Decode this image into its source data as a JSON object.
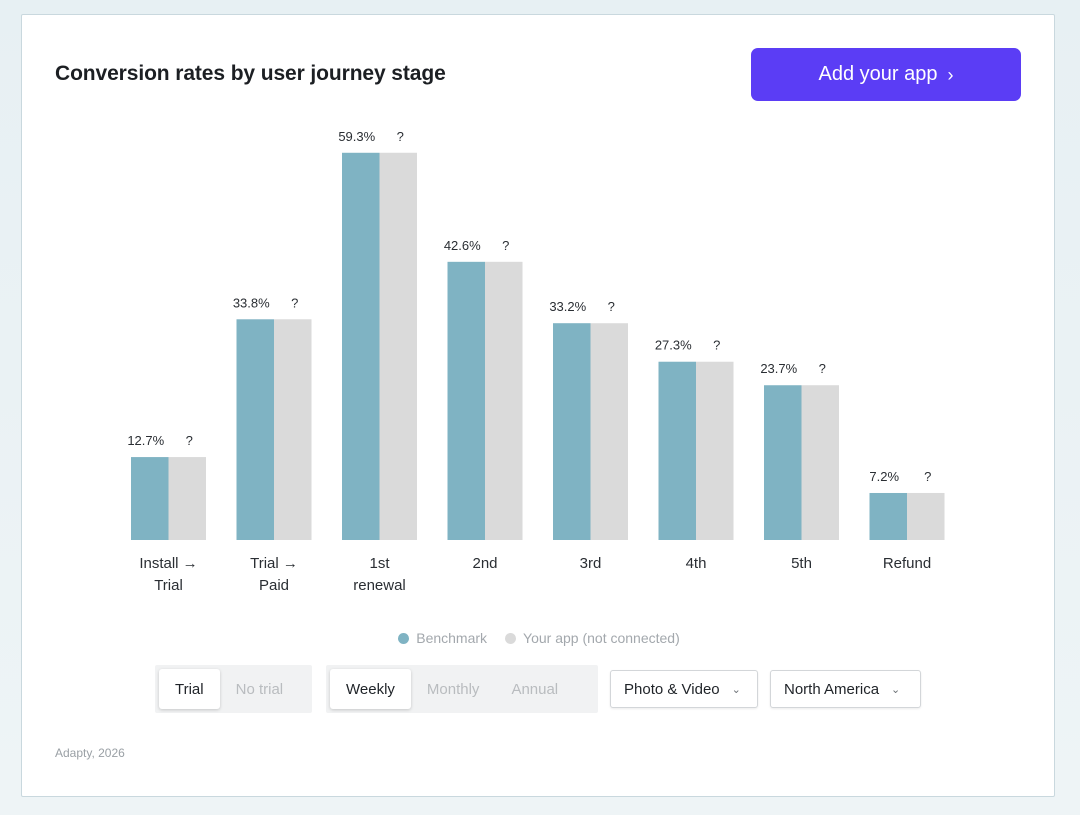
{
  "header": {
    "title": "Conversion rates by user journey stage",
    "cta_label": "Add your app",
    "cta_icon": "chevron-right-icon",
    "cta_color": "#5b3df5"
  },
  "chart_data": {
    "type": "bar",
    "title": "Conversion rates by user journey stage",
    "categories": [
      [
        "Install →",
        "Trial"
      ],
      [
        "Trial →",
        "Paid"
      ],
      [
        "1st",
        "renewal"
      ],
      [
        "2nd"
      ],
      [
        "3rd"
      ],
      [
        "4th"
      ],
      [
        "5th"
      ],
      [
        "Refund"
      ]
    ],
    "series": [
      {
        "name": "Benchmark",
        "color": "#7fb3c3",
        "values": [
          12.7,
          33.8,
          59.3,
          42.6,
          33.2,
          27.3,
          23.7,
          7.2
        ],
        "labels": [
          "12.7%",
          "33.8%",
          "59.3%",
          "42.6%",
          "33.2%",
          "27.3%",
          "23.7%",
          "7.2%"
        ]
      },
      {
        "name": "Your app (not connected)",
        "color": "#dadada",
        "values": [
          12.7,
          33.8,
          59.3,
          42.6,
          33.2,
          27.3,
          23.7,
          7.2
        ],
        "labels": [
          "?",
          "?",
          "?",
          "?",
          "?",
          "?",
          "?",
          "?"
        ]
      }
    ],
    "ylim": [
      0,
      60
    ],
    "xlabel": "",
    "ylabel": "",
    "grid": false,
    "legend": "bottom-center"
  },
  "legend": {
    "benchmark_label": "Benchmark",
    "yourapp_label": "Your app (not connected)"
  },
  "filters": {
    "trial_toggle": {
      "options": [
        "Trial",
        "No trial"
      ],
      "selected": "Trial"
    },
    "period_toggle": {
      "options": [
        "Weekly",
        "Monthly",
        "Annual"
      ],
      "selected": "Weekly"
    },
    "category_dropdown": "Photo & Video",
    "region_dropdown": "North America"
  },
  "footer": {
    "source": "Adapty, 2026"
  }
}
